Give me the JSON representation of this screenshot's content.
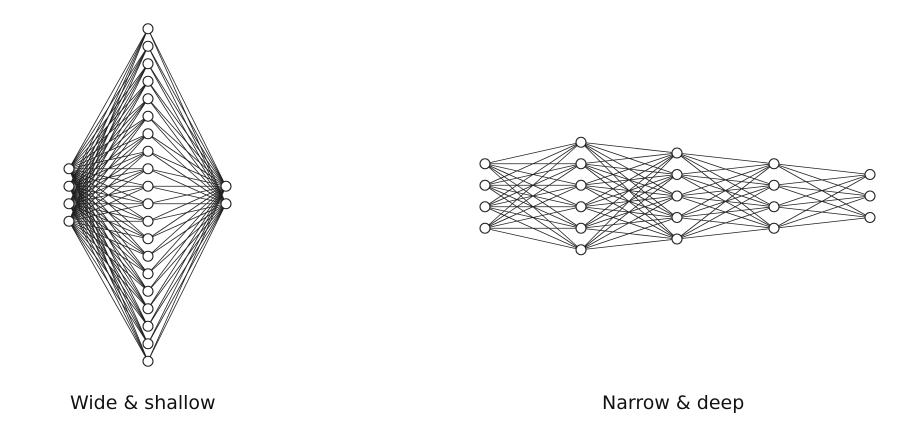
{
  "networks": [
    {
      "id": "wide-shallow",
      "caption": "Wide & shallow",
      "layers": [
        4,
        20,
        2
      ]
    },
    {
      "id": "narrow-deep",
      "caption": "Narrow & deep",
      "layers": [
        4,
        6,
        5,
        4,
        3
      ]
    }
  ]
}
